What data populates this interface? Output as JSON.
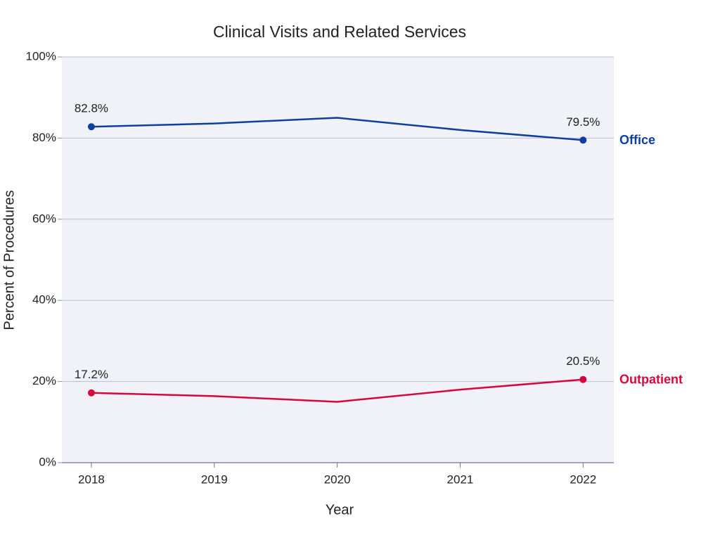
{
  "chart_data": {
    "type": "line",
    "title": "Clinical Visits and Related Services",
    "x_label": "Year",
    "y_label": "Percent of Procedures",
    "x": [
      2018,
      2019,
      2020,
      2021,
      2022
    ],
    "xlim": [
      2017.76,
      2022.25
    ],
    "xticks": [
      2018,
      2019,
      2020,
      2021,
      2022
    ],
    "ylim": [
      0,
      100
    ],
    "yticks": [
      {
        "value": 0,
        "label": "0%"
      },
      {
        "value": 20,
        "label": "20%"
      },
      {
        "value": 40,
        "label": "40%"
      },
      {
        "value": 60,
        "label": "60%"
      },
      {
        "value": 80,
        "label": "80%"
      },
      {
        "value": 100,
        "label": "100%"
      }
    ],
    "grid": true,
    "series": [
      {
        "name": "Office",
        "color": "#0d3fa0",
        "values": [
          82.8,
          83.6,
          85.0,
          82.0,
          79.5
        ],
        "value_labels": [
          "82.8%",
          null,
          null,
          null,
          "79.5%"
        ]
      },
      {
        "name": "Outpatient",
        "color": "#d6083b",
        "values": [
          17.2,
          16.4,
          15.0,
          18.0,
          20.5
        ],
        "value_labels": [
          "17.2%",
          null,
          null,
          null,
          "20.5%"
        ]
      }
    ]
  }
}
